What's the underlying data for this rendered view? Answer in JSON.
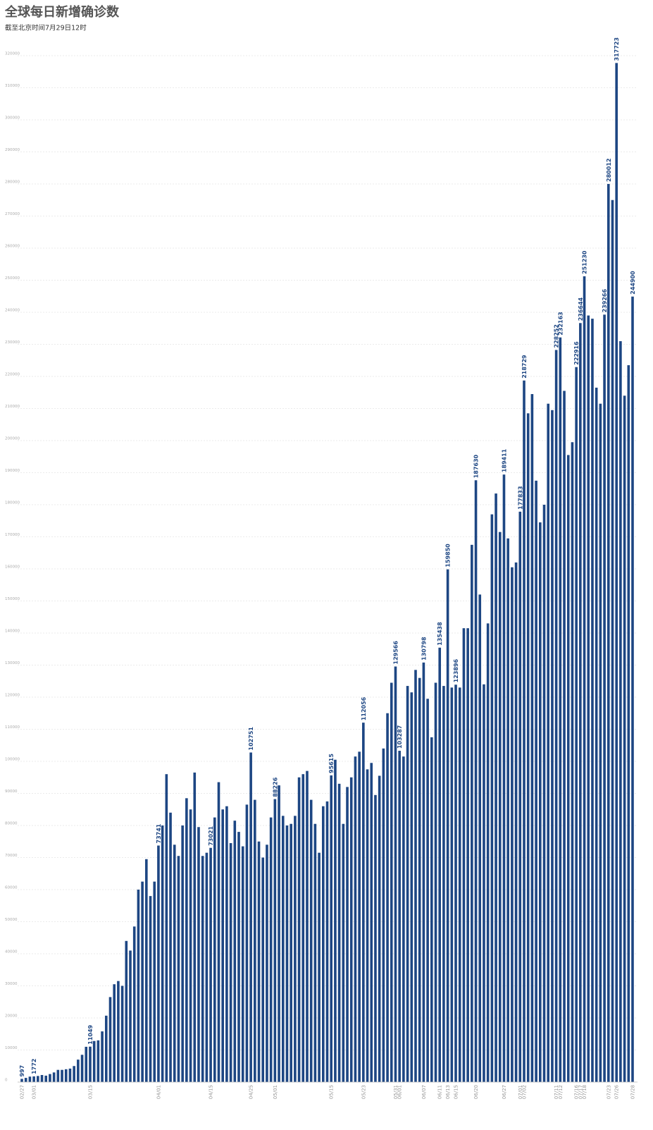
{
  "chart_data": {
    "type": "bar",
    "title": "全球每日新增确诊数",
    "subtitle": "截至北京时间7月29日12时",
    "color": "#1d4683",
    "grid": true,
    "ylim": [
      0,
      320000
    ],
    "yticks": [
      0,
      10000,
      20000,
      30000,
      40000,
      50000,
      60000,
      70000,
      80000,
      90000,
      100000,
      110000,
      120000,
      130000,
      140000,
      150000,
      160000,
      170000,
      180000,
      190000,
      200000,
      210000,
      220000,
      230000,
      240000,
      250000,
      260000,
      270000,
      280000,
      290000,
      300000,
      310000,
      320000
    ],
    "categories": [
      "02/27",
      null,
      null,
      "03/01",
      null,
      null,
      null,
      null,
      null,
      null,
      null,
      null,
      null,
      null,
      null,
      null,
      null,
      "03/15",
      null,
      null,
      null,
      null,
      null,
      null,
      null,
      null,
      null,
      null,
      null,
      null,
      null,
      null,
      null,
      null,
      "04/01",
      null,
      null,
      null,
      null,
      null,
      null,
      null,
      null,
      null,
      null,
      null,
      null,
      "04/15",
      null,
      null,
      null,
      null,
      null,
      null,
      null,
      null,
      null,
      "04/25",
      null,
      null,
      null,
      null,
      null,
      "05/01",
      null,
      null,
      null,
      null,
      null,
      null,
      null,
      null,
      null,
      null,
      null,
      null,
      null,
      "05/15",
      null,
      null,
      null,
      null,
      null,
      null,
      null,
      "05/23",
      null,
      null,
      null,
      null,
      null,
      null,
      null,
      "05/31",
      "06/01",
      null,
      null,
      null,
      null,
      null,
      "06/07",
      null,
      null,
      null,
      "06/11",
      null,
      "06/13",
      null,
      "06/15",
      null,
      null,
      null,
      null,
      "06/20",
      null,
      null,
      null,
      null,
      null,
      null,
      "06/27",
      null,
      null,
      null,
      "07/01",
      "07/02",
      null,
      null,
      null,
      null,
      null,
      null,
      null,
      "07/11",
      "07/12",
      null,
      null,
      null,
      "07/16",
      "07/17",
      "07/18",
      null,
      null,
      null,
      null,
      null,
      "07/23",
      null,
      "07/26",
      null,
      null,
      null,
      "07/28"
    ],
    "values": [
      997,
      1300,
      1700,
      1772,
      1900,
      2200,
      2000,
      2500,
      3000,
      3800,
      3800,
      4000,
      4200,
      5000,
      7000,
      8500,
      11000,
      11049,
      12800,
      13000,
      15800,
      20700,
      26500,
      30500,
      31500,
      30000,
      44000,
      41000,
      48500,
      60000,
      62500,
      69500,
      58000,
      62500,
      73741,
      80000,
      96000,
      84000,
      74000,
      70500,
      80000,
      88500,
      85000,
      96500,
      79500,
      70500,
      71500,
      73021,
      82500,
      93500,
      85000,
      86000,
      74500,
      81500,
      78000,
      73500,
      86500,
      102751,
      88000,
      75000,
      70000,
      74000,
      82500,
      88226,
      92500,
      83000,
      80000,
      80500,
      83000,
      95000,
      96000,
      97000,
      88000,
      80500,
      71500,
      86000,
      87500,
      95615,
      100500,
      93000,
      80500,
      92000,
      95000,
      101500,
      103000,
      112056,
      97500,
      99500,
      89500,
      95500,
      104000,
      115000,
      124500,
      129566,
      103287,
      101500,
      123500,
      121500,
      128500,
      126000,
      130798,
      119500,
      107500,
      124500,
      135438,
      123500,
      159850,
      123000,
      123896,
      123000,
      141500,
      141500,
      167500,
      187630,
      152000,
      124000,
      143000,
      177000,
      183500,
      171500,
      189411,
      169500,
      160500,
      162000,
      177833,
      218729,
      208500,
      214500,
      187500,
      174500,
      180000,
      211500,
      209500,
      228252,
      232163,
      215500,
      195500,
      199500,
      222916,
      236644,
      251230,
      239000,
      238000,
      216500,
      211500,
      239266,
      280012,
      275000,
      317723,
      231000,
      214000,
      223500,
      244900
    ],
    "value_labels": [
      "997",
      null,
      null,
      "1772",
      null,
      null,
      null,
      null,
      null,
      null,
      null,
      null,
      null,
      null,
      null,
      null,
      null,
      "11049",
      null,
      null,
      null,
      null,
      null,
      null,
      null,
      null,
      null,
      null,
      null,
      null,
      null,
      null,
      null,
      null,
      "73741",
      null,
      null,
      null,
      null,
      null,
      null,
      null,
      null,
      null,
      null,
      null,
      null,
      "73021",
      null,
      null,
      null,
      null,
      null,
      null,
      null,
      null,
      null,
      "102751",
      null,
      null,
      null,
      null,
      null,
      "88226",
      null,
      null,
      null,
      null,
      null,
      null,
      null,
      null,
      null,
      null,
      null,
      null,
      null,
      "95615",
      null,
      null,
      null,
      null,
      null,
      null,
      null,
      "112056",
      null,
      null,
      null,
      null,
      null,
      null,
      null,
      "129566",
      "103287",
      null,
      null,
      null,
      null,
      null,
      "130798",
      null,
      null,
      null,
      "135438",
      null,
      "159850",
      null,
      "123896",
      null,
      null,
      null,
      null,
      "187630",
      null,
      null,
      null,
      null,
      null,
      null,
      "189411",
      null,
      null,
      null,
      "177833",
      "218729",
      null,
      null,
      null,
      null,
      null,
      null,
      null,
      "228252",
      "232163",
      null,
      null,
      null,
      "222916",
      "236644",
      "251230",
      null,
      null,
      null,
      null,
      "239266",
      "280012",
      null,
      "317723",
      null,
      null,
      null,
      "244900"
    ]
  }
}
